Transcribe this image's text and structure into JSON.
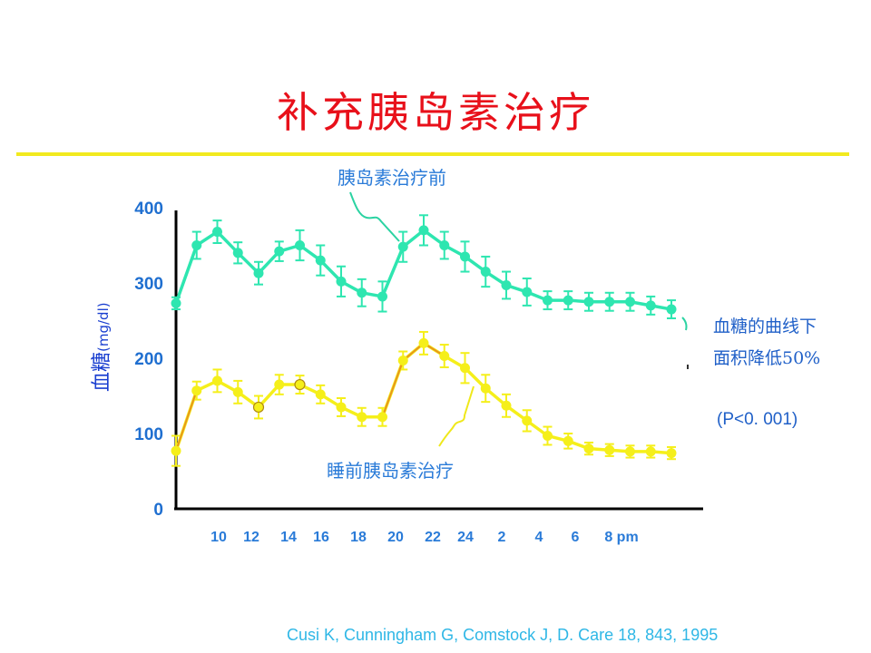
{
  "slide": {
    "title": "补充胰岛素治疗",
    "citation": "Cusi K, Cunningham G, Comstock J, D. Care 18, 843, 1995"
  },
  "annotations": {
    "before_label": "胰岛素治疗前",
    "bedtime_label": "睡前胰岛素治疗",
    "auc_line1": "血糖的曲线下",
    "auc_line2": "面积降低50%",
    "pvalue": "(P<0. 001)"
  },
  "y_axis": {
    "label_main": "血糖",
    "label_unit": "(mg/dl)"
  },
  "colors": {
    "before": "#2ee6b0",
    "bedtime": "#f5ef1a",
    "bedtime_segment": "#e8961a",
    "axis": "#000000",
    "title": "#e8101a"
  },
  "chart_data": {
    "type": "line",
    "title": "补充胰岛素治疗",
    "ylabel": "血糖(mg/dl)",
    "xlabel": "",
    "ylim": [
      0,
      400
    ],
    "yticks": [
      "0",
      "100",
      "200",
      "300",
      "400"
    ],
    "xticks": [
      "10",
      "12",
      "14",
      "16",
      "18",
      "20",
      "22",
      "24",
      "2",
      "4",
      "6",
      "8 pm"
    ],
    "series": [
      {
        "name": "胰岛素治疗前",
        "values": [
          273,
          350,
          368,
          340,
          313,
          342,
          350,
          330,
          302,
          287,
          282,
          348,
          370,
          350,
          335,
          315,
          297,
          288,
          277,
          277,
          275,
          275,
          275,
          270,
          265
        ],
        "errors": [
          8,
          18,
          15,
          14,
          15,
          13,
          20,
          20,
          20,
          18,
          20,
          20,
          20,
          18,
          20,
          20,
          18,
          18,
          12,
          12,
          12,
          12,
          12,
          12,
          12
        ]
      },
      {
        "name": "睡前胰岛素治疗",
        "values": [
          77,
          157,
          170,
          155,
          135,
          165,
          165,
          152,
          135,
          122,
          122,
          197,
          220,
          203,
          187,
          160,
          137,
          117,
          97,
          90,
          80,
          78,
          76,
          76,
          74
        ],
        "errors": [
          20,
          12,
          15,
          15,
          15,
          13,
          12,
          12,
          12,
          12,
          12,
          12,
          15,
          15,
          20,
          18,
          15,
          14,
          12,
          10,
          8,
          8,
          8,
          8,
          8
        ]
      }
    ]
  }
}
